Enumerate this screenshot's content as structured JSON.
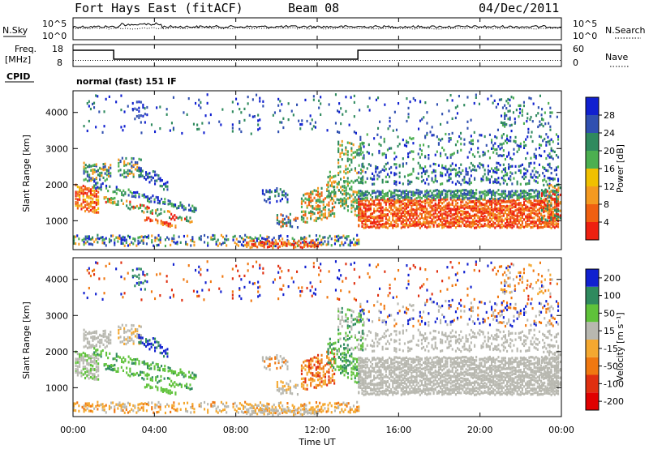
{
  "header": {
    "title": "Fort Hays East (fitACF)",
    "beam": "Beam 08",
    "date": "04/Dec/2011"
  },
  "top_panels": {
    "nsky_label": "N.Sky",
    "nsearch_label": "N.Search",
    "noise_ticks": [
      "10^5",
      "10^0"
    ],
    "freq_label": "Freq.",
    "freq_unit": "[MHz]",
    "freq_ticks": [
      "18",
      "8"
    ],
    "nave_label": "Nave",
    "nave_ticks": [
      "60",
      "0"
    ],
    "cpid_label": "CPID",
    "cpid_text": "normal (fast) 151 IF"
  },
  "time_axis": {
    "label": "Time UT",
    "ticks": [
      "00:00",
      "04:00",
      "08:00",
      "12:00",
      "16:00",
      "20:00",
      "00:00"
    ]
  },
  "colors": {
    "power": [
      "#1020d0",
      "#3050b0",
      "#2f8a5e",
      "#4caf50",
      "#f0c000",
      "#f49a20",
      "#f06010",
      "#ee2010"
    ],
    "velocity": [
      "#1020d0",
      "#2f8a5e",
      "#5fc23a",
      "#b8b8b0",
      "#f4a830",
      "#f07810",
      "#e03010",
      "#e00000"
    ]
  },
  "chart_data": [
    {
      "type": "heatmap",
      "ylabel": "Slant Range [km]",
      "xlabel": "",
      "yticks": [
        "1000",
        "2000",
        "3000",
        "4000"
      ],
      "ylim": [
        200,
        4600
      ],
      "xlim_hours": [
        0,
        24
      ],
      "colorbar_label": "Power [dB]",
      "colorbar_ticks": [
        "28",
        "24",
        "20",
        "16",
        "12",
        "8",
        "4"
      ],
      "colorbar_range": [
        0,
        32
      ]
    },
    {
      "type": "heatmap",
      "ylabel": "Slant Range [km]",
      "xlabel": "Time UT",
      "yticks": [
        "1000",
        "2000",
        "3000",
        "4000"
      ],
      "ylim": [
        200,
        4600
      ],
      "xlim_hours": [
        0,
        24
      ],
      "colorbar_label": "Velocity [m s⁻¹]",
      "colorbar_ticks": [
        "200",
        "100",
        "50",
        "15",
        "-15",
        "-50",
        "-100",
        "-200"
      ]
    }
  ]
}
